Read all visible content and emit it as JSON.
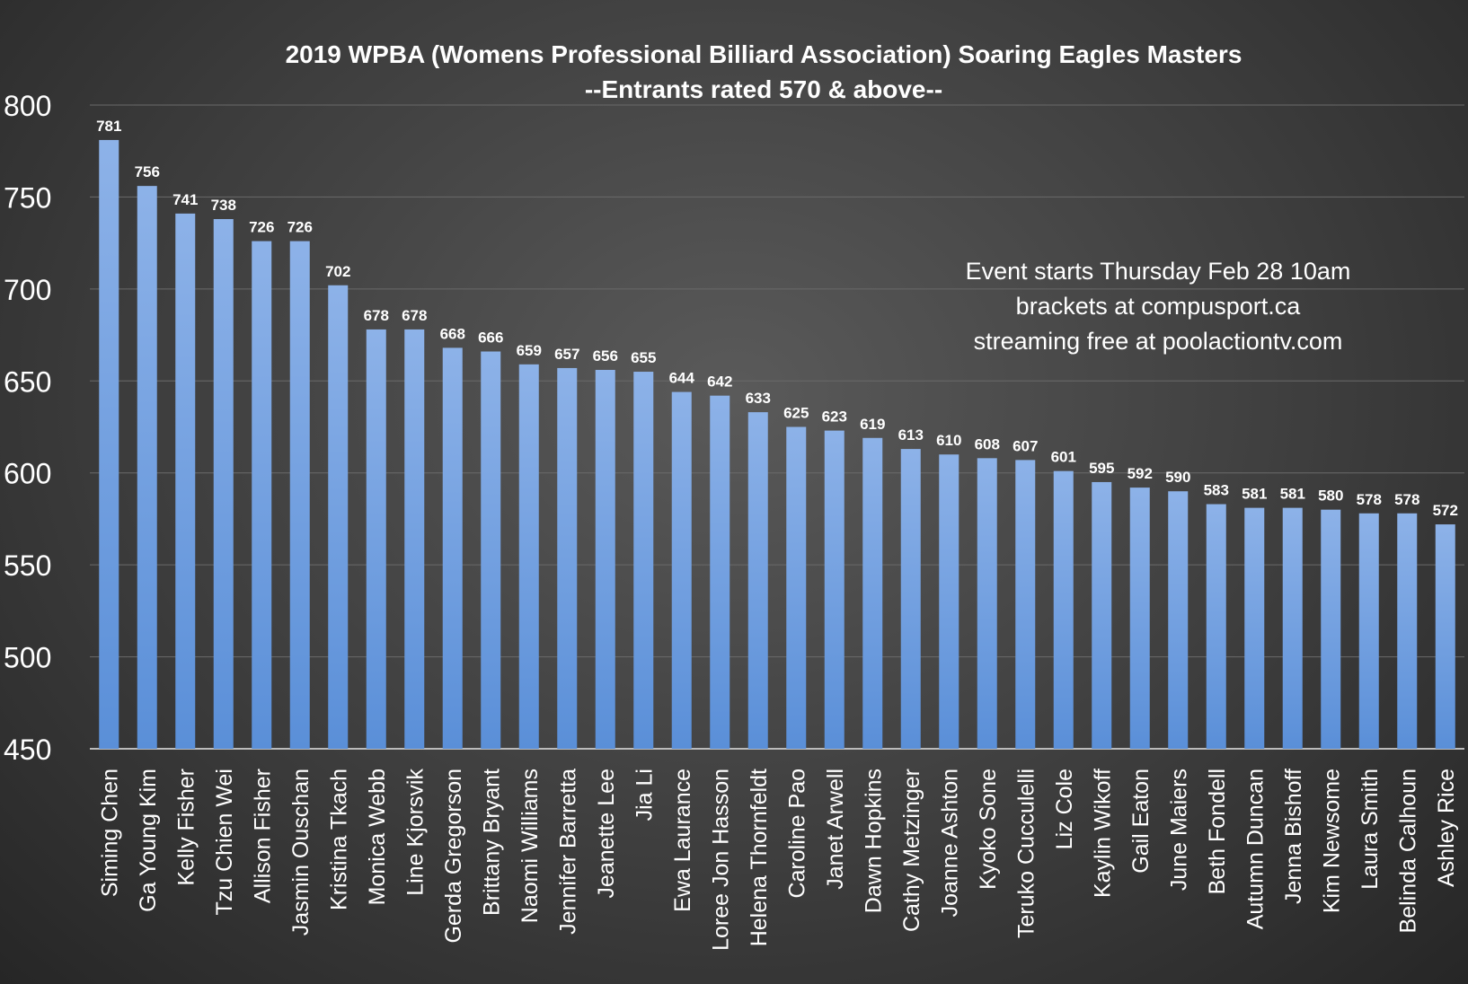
{
  "chart_data": {
    "type": "bar",
    "title": "2019 WPBA (Womens Professional Billiard Association)  Soaring Eagles Masters",
    "subtitle": "--Entrants rated 570 & above--",
    "annotation": [
      "Event starts Thursday Feb 28 10am",
      "brackets at compusport.ca",
      "streaming  free at poolactiontv.com"
    ],
    "xlabel": "",
    "ylabel": "",
    "ylim": [
      450,
      800
    ],
    "yticks": [
      450,
      500,
      550,
      600,
      650,
      700,
      750,
      800
    ],
    "grid": true,
    "colors": {
      "bar_top": "#8db2e8",
      "bar_bottom": "#5a8fd8",
      "grid": "#6a6a6a"
    },
    "categories": [
      "Siming Chen",
      "Ga Young Kim",
      "Kelly Fisher",
      "Tzu Chien Wei",
      "Allison Fisher",
      "Jasmin Ouschan",
      "Kristina Tkach",
      "Monica Webb",
      "Line Kjorsvik",
      "Gerda Gregorson",
      "Brittany Bryant",
      "Naomi Williams",
      "Jennifer Barretta",
      "Jeanette Lee",
      "Jia Li",
      "Ewa Laurance",
      "Loree Jon Hasson",
      "Helena Thornfeldt",
      "Caroline Pao",
      "Janet Arwell",
      "Dawn Hopkins",
      "Cathy Metzinger",
      "Joanne Ashton",
      "Kyoko Sone",
      "Teruko Cucculelli",
      "Liz Cole",
      "Kaylin Wikoff",
      "Gail Eaton",
      "June Maiers",
      "Beth Fondell",
      "Autumn Duncan",
      "Jenna Bishoff",
      "Kim Newsome",
      "Laura Smith",
      "Belinda Calhoun",
      "Ashley Rice"
    ],
    "values": [
      781,
      756,
      741,
      738,
      726,
      726,
      702,
      678,
      678,
      668,
      666,
      659,
      657,
      656,
      655,
      644,
      642,
      633,
      625,
      623,
      619,
      613,
      610,
      608,
      607,
      601,
      595,
      592,
      590,
      583,
      581,
      581,
      580,
      578,
      578,
      572
    ]
  }
}
